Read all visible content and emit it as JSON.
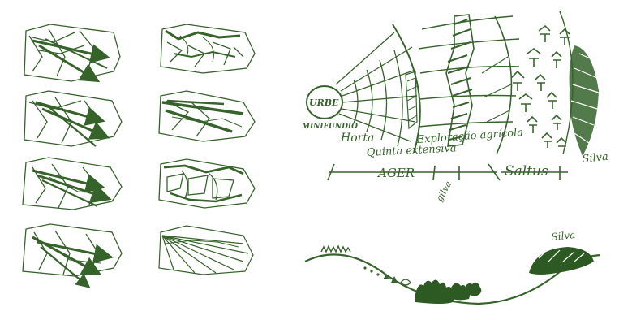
{
  "colors": {
    "ink": "#35632a",
    "ink_dark": "#2c5a22",
    "paper": "#ffffff"
  },
  "panels": [
    {
      "label": ""
    },
    {
      "label": ""
    },
    {
      "label": ""
    },
    {
      "label": ""
    },
    {
      "label": ""
    },
    {
      "label": ""
    },
    {
      "label": ""
    },
    {
      "label": ""
    }
  ],
  "plan": {
    "urbe": "URBE",
    "minifundio": "MINIFUNDIO",
    "horta": "Horta",
    "exploracao": "Exploração agrícola",
    "quinta": "Quinta extensiva",
    "ager": "AGER",
    "saltus": "Saltus",
    "silva": "Silva",
    "gilva": "gilva"
  },
  "profile": {
    "silva": "Silva"
  }
}
